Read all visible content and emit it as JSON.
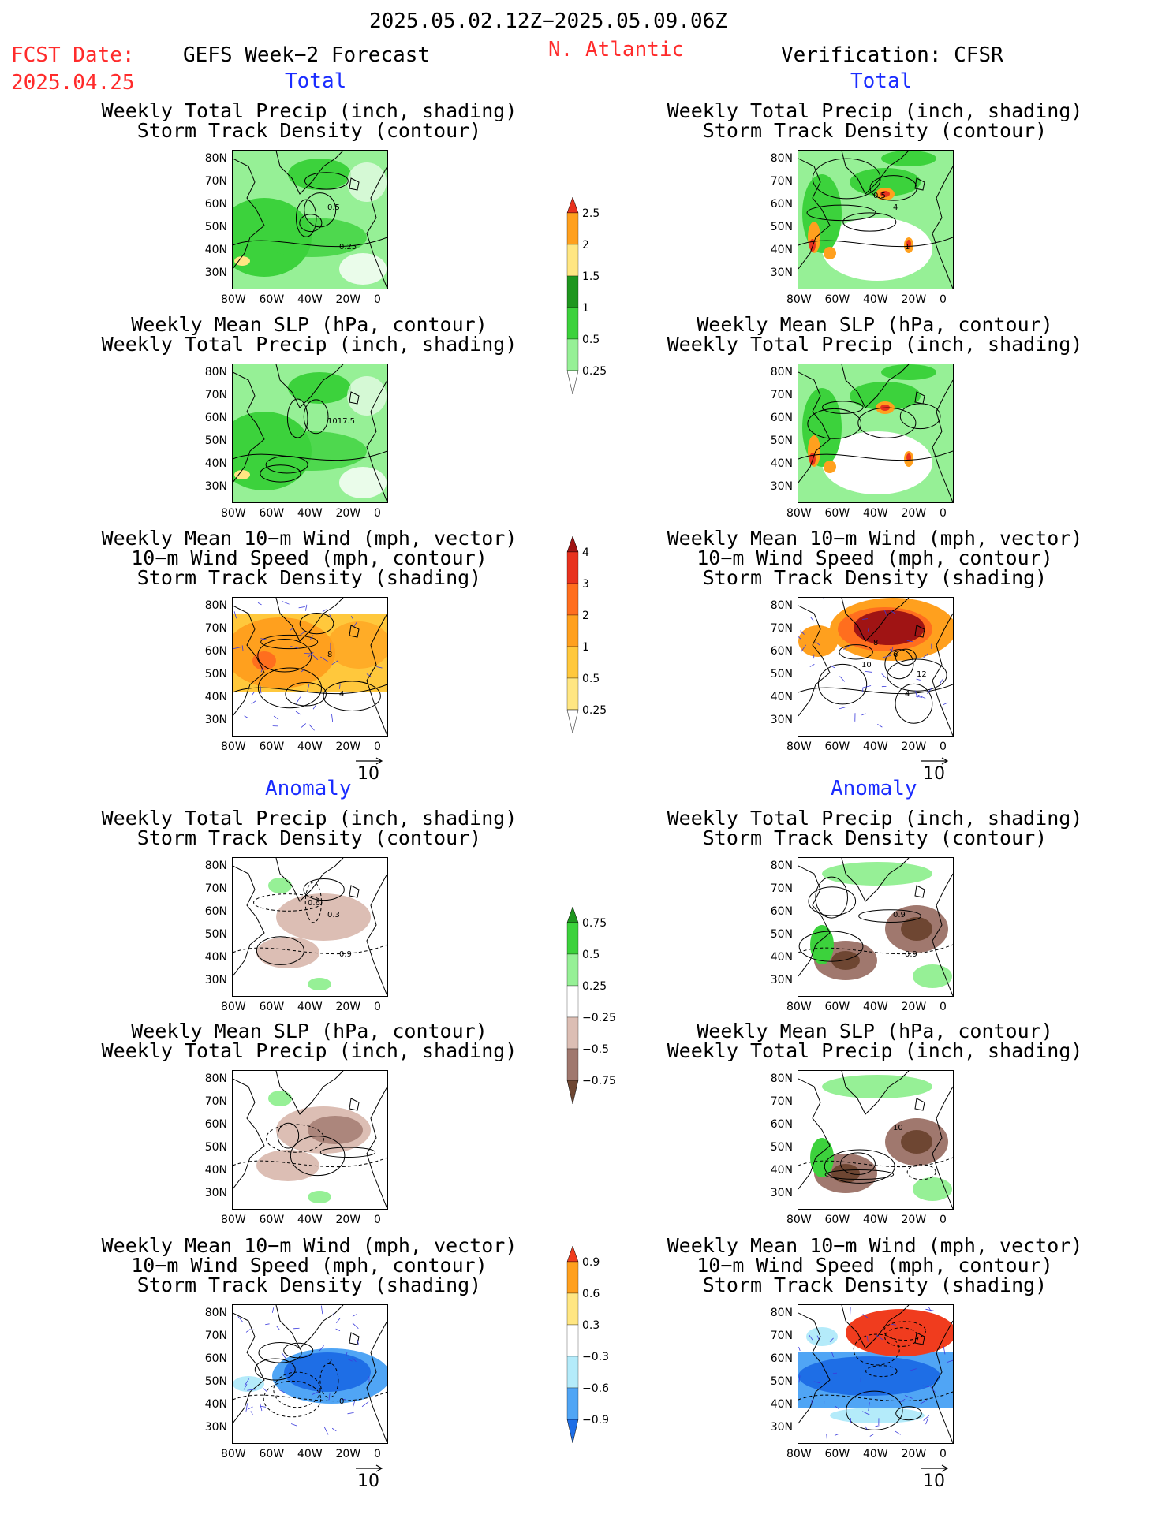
{
  "header": {
    "period": "2025.05.02.12Z−2025.05.09.06Z",
    "fcst_label": "FCST Date:",
    "fcst_date": "2025.04.25",
    "model": "GEFS Week−2 Forecast",
    "region": "N. Atlantic",
    "verification": "Verification: CFSR"
  },
  "sections": {
    "total": "Total",
    "anomaly": "Anomaly"
  },
  "titles": {
    "precip_track": [
      "Weekly Total Precip (inch, shading)",
      "Storm Track Density (contour)"
    ],
    "slp_precip": [
      "Weekly Mean SLP (hPa, contour)",
      "Weekly Total Precip (inch, shading)"
    ],
    "wind_track": [
      "Weekly Mean 10−m Wind (mph, vector)",
      "10−m Wind Speed (mph, contour)",
      "Storm Track Density (shading)"
    ]
  },
  "axes": {
    "lat_labels": [
      "80N",
      "70N",
      "60N",
      "50N",
      "40N",
      "30N"
    ],
    "lon_labels": [
      "80W",
      "60W",
      "40W",
      "20W",
      "0"
    ]
  },
  "vector_ref": "10",
  "contour_labels": {
    "fcst_total_precip": [
      "0.5",
      "0.25"
    ],
    "cfsr_total_precip": [
      "4",
      "1",
      "0.5"
    ],
    "fcst_total_slp": [
      "1017.5"
    ],
    "fcst_total_wind": [
      "8",
      "4"
    ],
    "cfsr_total_wind": [
      "6",
      "4",
      "8",
      "10",
      "12"
    ],
    "fcst_anom_precip": [
      "0.3",
      "0.9",
      "0.6"
    ],
    "cfsr_anom_precip": [
      "0.9",
      "0.9"
    ],
    "cfsr_anom_slp": [
      "10"
    ],
    "fcst_anom_wind": [
      "2",
      "0"
    ]
  },
  "colorbars": {
    "total_precip": {
      "labels": [
        "2.5",
        "2",
        "1.5",
        "1",
        "0.5",
        "0.25"
      ],
      "colors": [
        "#e8321e",
        "#ffa01e",
        "#ffe682",
        "#1e961e",
        "#3cd23c",
        "#96f096",
        "#ffffff"
      ]
    },
    "total_track": {
      "labels": [
        "4",
        "3",
        "2",
        "1",
        "0.5",
        "0.25"
      ],
      "colors": [
        "#a01414",
        "#e8321e",
        "#ff6e1e",
        "#ffa01e",
        "#ffc83c",
        "#ffe682",
        "#ffffff"
      ]
    },
    "anom_precip": {
      "labels": [
        "0.75",
        "0.5",
        "0.25",
        "−0.25",
        "−0.5",
        "−0.75"
      ],
      "colors": [
        "#1e961e",
        "#3cd23c",
        "#96f096",
        "#ffffff",
        "#dcbeb4",
        "#a0786e",
        "#6e4632"
      ]
    },
    "anom_track": {
      "labels": [
        "0.9",
        "0.6",
        "0.3",
        "−0.3",
        "−0.6",
        "−0.9"
      ],
      "colors": [
        "#f03c1e",
        "#ffa01e",
        "#ffe682",
        "#ffffff",
        "#b4ebfa",
        "#50a5f5",
        "#1e6ee6"
      ]
    }
  }
}
